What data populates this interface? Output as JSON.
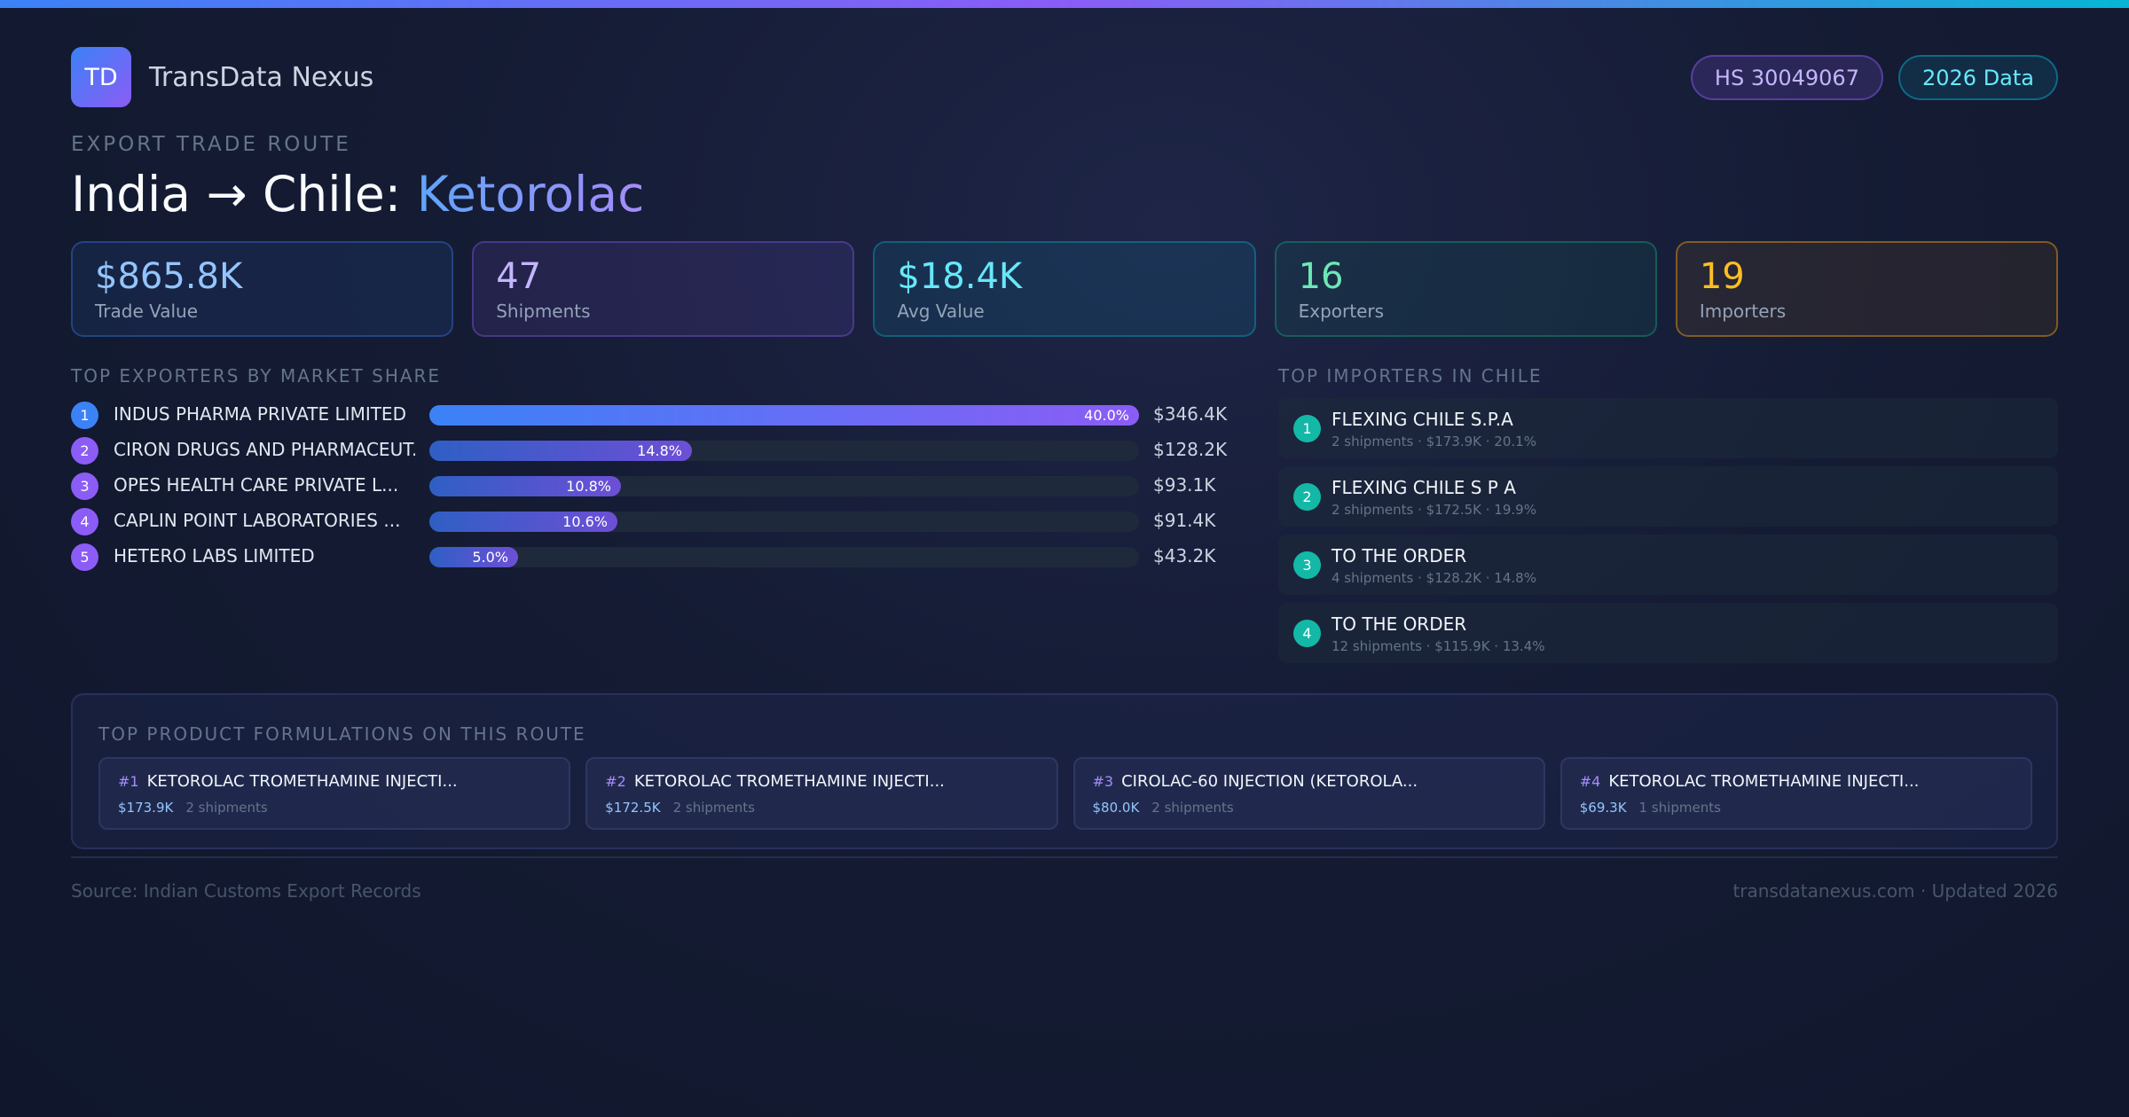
{
  "brand": {
    "logo_text": "TD",
    "name": "TransData Nexus"
  },
  "badges": {
    "hs_code": "HS 30049067",
    "data_year": "2026 Data"
  },
  "route": {
    "kicker": "EXPORT TRADE ROUTE",
    "title_main": "India → Chile: ",
    "title_product": "Ketorolac"
  },
  "stats": [
    {
      "value": "$865.8K",
      "label": "Trade Value"
    },
    {
      "value": "47",
      "label": "Shipments"
    },
    {
      "value": "$18.4K",
      "label": "Avg Value"
    },
    {
      "value": "16",
      "label": "Exporters"
    },
    {
      "value": "19",
      "label": "Importers"
    }
  ],
  "exporters": {
    "title": "TOP EXPORTERS BY MARKET SHARE",
    "items": [
      {
        "rank": "1",
        "name": "INDUS PHARMA PRIVATE LIMITED",
        "share_label": "40.0%",
        "share": 40.0,
        "value": "$346.4K"
      },
      {
        "rank": "2",
        "name": "CIRON DRUGS AND PHARMACEUT...",
        "share_label": "14.8%",
        "share": 14.8,
        "value": "$128.2K"
      },
      {
        "rank": "3",
        "name": "OPES HEALTH CARE PRIVATE L...",
        "share_label": "10.8%",
        "share": 10.8,
        "value": "$93.1K"
      },
      {
        "rank": "4",
        "name": "CAPLIN POINT LABORATORIES ...",
        "share_label": "10.6%",
        "share": 10.6,
        "value": "$91.4K"
      },
      {
        "rank": "5",
        "name": "HETERO LABS LIMITED",
        "share_label": "5.0%",
        "share": 5.0,
        "value": "$43.2K"
      }
    ]
  },
  "importers": {
    "title": "TOP IMPORTERS IN CHILE",
    "items": [
      {
        "rank": "1",
        "name": "FLEXING CHILE S.P.A",
        "detail": "2 shipments · $173.9K · 20.1%"
      },
      {
        "rank": "2",
        "name": "FLEXING CHILE S P A",
        "detail": "2 shipments · $172.5K · 19.9%"
      },
      {
        "rank": "3",
        "name": "TO THE ORDER",
        "detail": "4 shipments · $128.2K · 14.8%"
      },
      {
        "rank": "4",
        "name": "TO THE ORDER",
        "detail": "12 shipments · $115.9K · 13.4%"
      }
    ]
  },
  "formulations": {
    "title": "TOP PRODUCT FORMULATIONS ON THIS ROUTE",
    "items": [
      {
        "num": "#1",
        "name": "KETOROLAC TROMETHAMINE INJECTI...",
        "value": "$173.9K",
        "shipments": "2 shipments"
      },
      {
        "num": "#2",
        "name": "KETOROLAC TROMETHAMINE INJECTI...",
        "value": "$172.5K",
        "shipments": "2 shipments"
      },
      {
        "num": "#3",
        "name": "CIROLAC-60 INJECTION (KETOROLA...",
        "value": "$80.0K",
        "shipments": "2 shipments"
      },
      {
        "num": "#4",
        "name": "KETOROLAC TROMETHAMINE INJECTI...",
        "value": "$69.3K",
        "shipments": "1 shipments"
      }
    ]
  },
  "footer": {
    "source": "Source: Indian Customs Export Records",
    "site": "transdatanexus.com · Updated 2026"
  },
  "colors": {
    "accent_blue": "#3b82f6",
    "accent_violet": "#8b5cf6",
    "accent_cyan": "#06b6d4",
    "importer_rank": "#14b8a6",
    "rank_colors": [
      "#3b82f6",
      "#8b5cf6",
      "#8b5cf6",
      "#8b5cf6",
      "#8b5cf6"
    ]
  }
}
